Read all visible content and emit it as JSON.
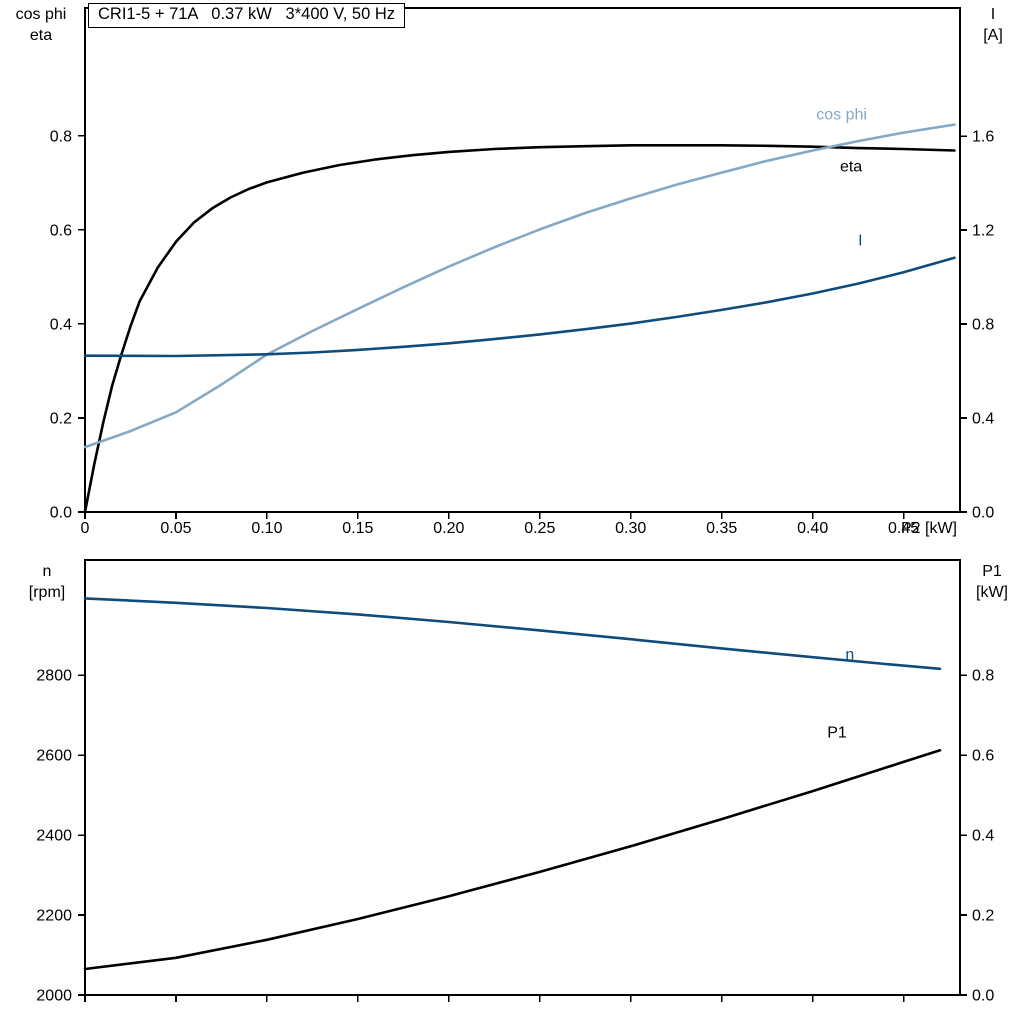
{
  "page": {
    "background": "#ffffff",
    "text_color": "#000000"
  },
  "chart_data": [
    {
      "type": "line",
      "title": "CRI1-5 + 71A   0.37 kW   3*400 V, 50 Hz",
      "xlabel": "P2 [kW]",
      "grid": false,
      "legend": "inline-labels",
      "x_axis": {
        "lim": [
          0,
          0.481
        ],
        "tick_values": [
          0,
          0.05,
          0.1,
          0.15,
          0.2,
          0.25,
          0.3,
          0.35,
          0.4,
          0.45
        ],
        "tick_labels": [
          "0",
          "0.05",
          "0.10",
          "0.15",
          "0.20",
          "0.25",
          "0.30",
          "0.35",
          "0.40",
          "0.45"
        ]
      },
      "left_axis": {
        "label_lines": [
          "cos phi",
          "eta"
        ],
        "lim": [
          0,
          1.072
        ],
        "tick_values": [
          0,
          0.2,
          0.4,
          0.6,
          0.8
        ],
        "tick_labels": [
          "0.0",
          "0.2",
          "0.4",
          "0.6",
          "0.8"
        ]
      },
      "right_axis": {
        "label_lines": [
          "I",
          "[A]"
        ],
        "lim": [
          0,
          2.145
        ],
        "tick_values": [
          0,
          0.4,
          0.8,
          1.2,
          1.6
        ],
        "tick_labels": [
          "0.0",
          "0.4",
          "0.8",
          "1.2",
          "1.6"
        ]
      },
      "series": [
        {
          "name": "eta",
          "axis": "left",
          "color": "#000000",
          "label": {
            "text": "eta",
            "x": 0.415,
            "y": 0.735
          },
          "points": [
            [
              0,
              0
            ],
            [
              0.005,
              0.1
            ],
            [
              0.01,
              0.19
            ],
            [
              0.015,
              0.27
            ],
            [
              0.02,
              0.335
            ],
            [
              0.025,
              0.395
            ],
            [
              0.03,
              0.448
            ],
            [
              0.04,
              0.52
            ],
            [
              0.05,
              0.575
            ],
            [
              0.06,
              0.616
            ],
            [
              0.07,
              0.646
            ],
            [
              0.08,
              0.669
            ],
            [
              0.09,
              0.687
            ],
            [
              0.1,
              0.701
            ],
            [
              0.12,
              0.722
            ],
            [
              0.14,
              0.738
            ],
            [
              0.16,
              0.75
            ],
            [
              0.18,
              0.759
            ],
            [
              0.2,
              0.766
            ],
            [
              0.225,
              0.772
            ],
            [
              0.25,
              0.776
            ],
            [
              0.275,
              0.778
            ],
            [
              0.3,
              0.78
            ],
            [
              0.325,
              0.78
            ],
            [
              0.35,
              0.78
            ],
            [
              0.375,
              0.779
            ],
            [
              0.4,
              0.777
            ],
            [
              0.425,
              0.774
            ],
            [
              0.45,
              0.772
            ],
            [
              0.478,
              0.769
            ]
          ]
        },
        {
          "name": "cos phi",
          "axis": "left",
          "color": "#84a9c7",
          "label": {
            "text": "cos phi",
            "x": 0.402,
            "y": 0.845
          },
          "points": [
            [
              0,
              0.138
            ],
            [
              0.025,
              0.172
            ],
            [
              0.05,
              0.212
            ],
            [
              0.075,
              0.271
            ],
            [
              0.1,
              0.335
            ],
            [
              0.125,
              0.385
            ],
            [
              0.15,
              0.432
            ],
            [
              0.175,
              0.478
            ],
            [
              0.2,
              0.522
            ],
            [
              0.225,
              0.563
            ],
            [
              0.25,
              0.601
            ],
            [
              0.275,
              0.636
            ],
            [
              0.3,
              0.667
            ],
            [
              0.325,
              0.696
            ],
            [
              0.35,
              0.722
            ],
            [
              0.375,
              0.747
            ],
            [
              0.4,
              0.769
            ],
            [
              0.425,
              0.789
            ],
            [
              0.45,
              0.807
            ],
            [
              0.478,
              0.824
            ]
          ]
        },
        {
          "name": "I",
          "axis": "right",
          "color": "#0f4c7c",
          "label": {
            "text": "I",
            "x": 0.425,
            "y": 1.155
          },
          "points": [
            [
              0,
              0.665
            ],
            [
              0.05,
              0.664
            ],
            [
              0.1,
              0.671
            ],
            [
              0.125,
              0.679
            ],
            [
              0.15,
              0.69
            ],
            [
              0.175,
              0.703
            ],
            [
              0.2,
              0.718
            ],
            [
              0.225,
              0.736
            ],
            [
              0.25,
              0.756
            ],
            [
              0.275,
              0.778
            ],
            [
              0.3,
              0.802
            ],
            [
              0.325,
              0.83
            ],
            [
              0.35,
              0.86
            ],
            [
              0.375,
              0.893
            ],
            [
              0.4,
              0.93
            ],
            [
              0.425,
              0.972
            ],
            [
              0.45,
              1.02
            ],
            [
              0.478,
              1.082
            ]
          ]
        }
      ]
    },
    {
      "type": "line",
      "title": "",
      "xlabel": "",
      "grid": false,
      "legend": "inline-labels",
      "x_axis": {
        "lim": [
          0,
          0.481
        ],
        "tick_values": [
          0,
          0.05,
          0.1,
          0.15,
          0.2,
          0.25,
          0.3,
          0.35,
          0.4,
          0.45
        ],
        "tick_labels": []
      },
      "left_axis": {
        "label_lines": [
          "n",
          "[rpm]"
        ],
        "lim": [
          2000,
          3088
        ],
        "tick_values": [
          2000,
          2200,
          2400,
          2600,
          2800
        ],
        "tick_labels": [
          "2000",
          "2200",
          "2400",
          "2600",
          "2800"
        ]
      },
      "right_axis": {
        "label_lines": [
          "P1",
          "[kW]"
        ],
        "lim": [
          0,
          1.088
        ],
        "tick_values": [
          0,
          0.2,
          0.4,
          0.6,
          0.8
        ],
        "tick_labels": [
          "0.0",
          "0.2",
          "0.4",
          "0.6",
          "0.8"
        ]
      },
      "series": [
        {
          "name": "n",
          "axis": "left",
          "color": "#0f4c7c",
          "label": {
            "text": "n",
            "x": 0.418,
            "y": 2852
          },
          "points": [
            [
              0,
              2992
            ],
            [
              0.05,
              2981
            ],
            [
              0.1,
              2968
            ],
            [
              0.15,
              2952
            ],
            [
              0.2,
              2933
            ],
            [
              0.25,
              2912
            ],
            [
              0.3,
              2890
            ],
            [
              0.35,
              2867
            ],
            [
              0.4,
              2845
            ],
            [
              0.44,
              2828
            ],
            [
              0.47,
              2816
            ]
          ]
        },
        {
          "name": "P1",
          "axis": "right",
          "color": "#000000",
          "label": {
            "text": "P1",
            "x": 0.408,
            "y": 0.657
          },
          "points": [
            [
              0,
              0.065
            ],
            [
              0.05,
              0.093
            ],
            [
              0.1,
              0.138
            ],
            [
              0.15,
              0.19
            ],
            [
              0.2,
              0.247
            ],
            [
              0.25,
              0.308
            ],
            [
              0.3,
              0.372
            ],
            [
              0.35,
              0.44
            ],
            [
              0.4,
              0.51
            ],
            [
              0.45,
              0.583
            ],
            [
              0.47,
              0.612
            ]
          ]
        }
      ]
    }
  ]
}
